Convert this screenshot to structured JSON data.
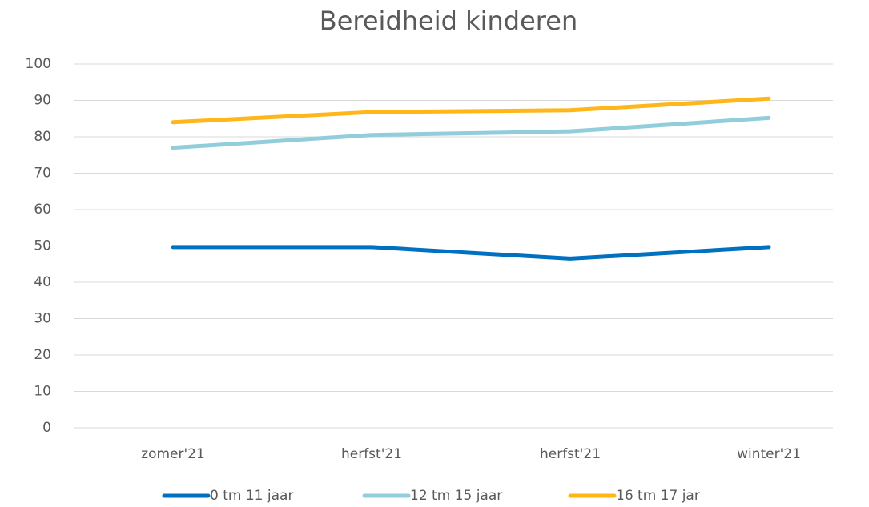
{
  "chart_data": {
    "type": "line",
    "title": "Bereidheid kinderen",
    "categories": [
      "zomer'21",
      "herfst'21",
      "herfst'21",
      "winter'21"
    ],
    "series": [
      {
        "name": "0 tm 11 jaar",
        "color": "#0070c0",
        "values": [
          49.7,
          49.7,
          46.5,
          49.7
        ]
      },
      {
        "name": "12 tm 15 jaar",
        "color": "#92cddc",
        "values": [
          77,
          80.5,
          81.5,
          85.2
        ]
      },
      {
        "name": "16 tm 17 jar",
        "color": "#ffb619",
        "values": [
          84,
          86.8,
          87.3,
          90.5
        ]
      }
    ],
    "ylim": [
      0,
      100
    ],
    "yticks": [
      0,
      10,
      20,
      30,
      40,
      50,
      60,
      70,
      80,
      90,
      100
    ],
    "grid": true,
    "legend": "bottom"
  }
}
